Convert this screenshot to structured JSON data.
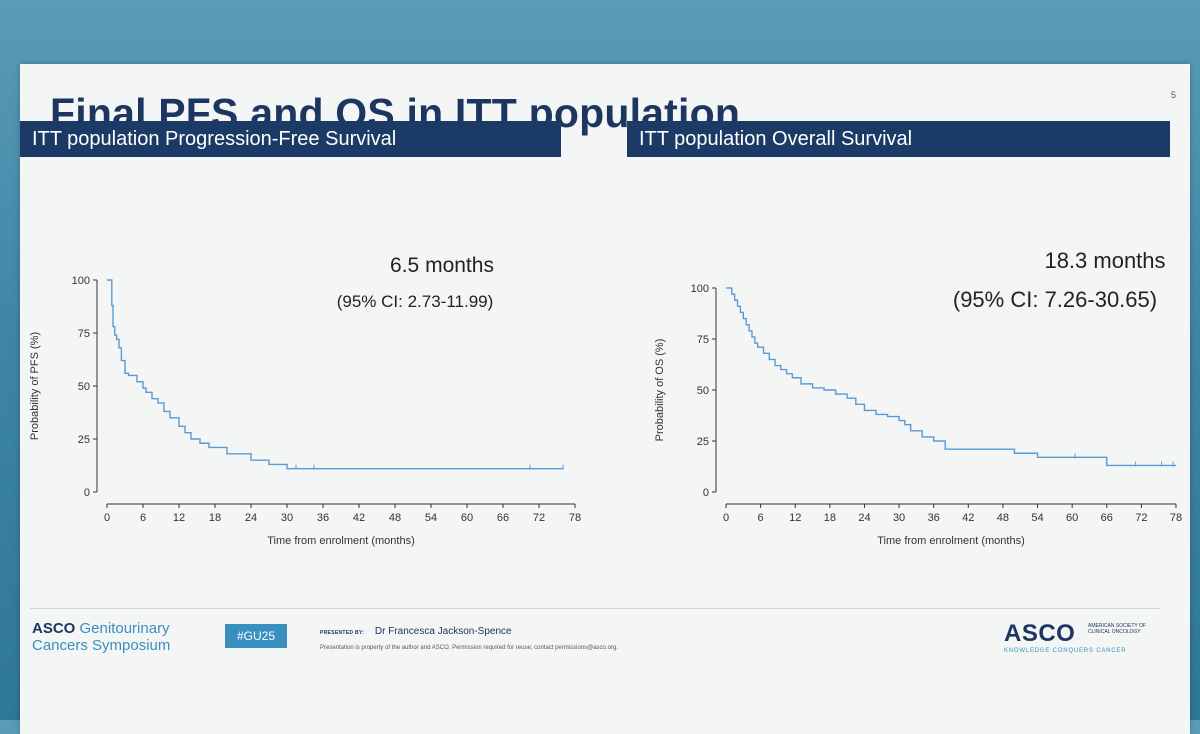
{
  "slide": {
    "title": "Final PFS and OS in ITT population",
    "page_number": "5"
  },
  "footer": {
    "logo_asco": "ASCO",
    "logo_line1_rest": "Genitourinary",
    "logo_line2": "Cancers Symposium",
    "hashtag": "#GU25",
    "presented_label": "PRESENTED BY:",
    "presenter": "Dr Francesca Jackson-Spence",
    "disclaimer": "Presentation is property of the author and ASCO. Permission required for reuse; contact permissions@asco.org.",
    "asco_right": "ASCO",
    "asco_right_small": "AMERICAN SOCIETY OF CLINICAL ONCOLOGY",
    "asco_right_tag": "KNOWLEDGE CONQUERS CANCER"
  },
  "colors": {
    "header_bg": "#1b3a66",
    "curve": "#5b9bd5",
    "title": "#1d3661"
  },
  "chart_data": [
    {
      "type": "line",
      "panel_title": "ITT population Progression-Free Survival",
      "xlabel": "Time from enrolment (months)",
      "ylabel": "Probability of PFS (%)",
      "xlim": [
        0,
        78
      ],
      "ylim": [
        0,
        100
      ],
      "xticks": [
        "0",
        "6",
        "12",
        "18",
        "24",
        "30",
        "36",
        "42",
        "48",
        "54",
        "60",
        "66",
        "72",
        "78"
      ],
      "yticks": [
        "0",
        "25",
        "50",
        "75",
        "100"
      ],
      "median": "6.5 months",
      "ci": "(95% CI: 2.73-11.99)",
      "step": "post",
      "series": [
        {
          "x": [
            0,
            0.8,
            1.0,
            1.3,
            1.6,
            2.0,
            2.4,
            3.0,
            3.6,
            5.0,
            6.0,
            6.5,
            7.5,
            8.5,
            9.5,
            10.5,
            12.0,
            13.0,
            14.0,
            15.5,
            17.0,
            20.0,
            24.0,
            27.0,
            30.0,
            76.0
          ],
          "y": [
            100,
            88,
            78,
            74,
            72,
            68,
            62,
            56,
            55,
            52,
            49,
            47,
            44,
            42,
            38,
            35,
            31,
            28,
            25,
            23,
            21,
            18,
            15,
            13,
            11,
            11
          ],
          "censored": [
            31.5,
            34.5,
            70.5,
            76.0
          ]
        }
      ]
    },
    {
      "type": "line",
      "panel_title": "ITT population Overall Survival",
      "xlabel": "Time from enrolment (months)",
      "ylabel": "Probability of OS (%)",
      "xlim": [
        0,
        78
      ],
      "ylim": [
        0,
        100
      ],
      "xticks": [
        "0",
        "6",
        "12",
        "18",
        "24",
        "30",
        "36",
        "42",
        "48",
        "54",
        "60",
        "66",
        "72",
        "78"
      ],
      "yticks": [
        "0",
        "25",
        "50",
        "75",
        "100"
      ],
      "median": "18.3 months",
      "ci": "(95% CI: 7.26-30.65)",
      "step": "post",
      "series": [
        {
          "x": [
            0,
            1.0,
            1.5,
            2.0,
            2.5,
            3.0,
            3.5,
            4.0,
            4.5,
            5.0,
            5.5,
            6.5,
            7.5,
            8.5,
            9.5,
            10.5,
            11.5,
            13.0,
            15.0,
            17.0,
            19.0,
            21.0,
            22.5,
            24.0,
            26.0,
            28.0,
            30.0,
            31.0,
            32.0,
            34.0,
            36.0,
            38.0,
            44.0,
            50.0,
            54.0,
            60.0,
            66.0,
            70.0,
            78.0
          ],
          "y": [
            100,
            97,
            94,
            91,
            88,
            85,
            82,
            79,
            76,
            73,
            71,
            68,
            65,
            62,
            60,
            58,
            56,
            53,
            51,
            50,
            48,
            46,
            43,
            40,
            38,
            37,
            35,
            33,
            30,
            27,
            25,
            21,
            21,
            19,
            17,
            17,
            13,
            13,
            13
          ],
          "censored": [
            60.5,
            71.0,
            75.5,
            77.5
          ]
        }
      ]
    }
  ]
}
